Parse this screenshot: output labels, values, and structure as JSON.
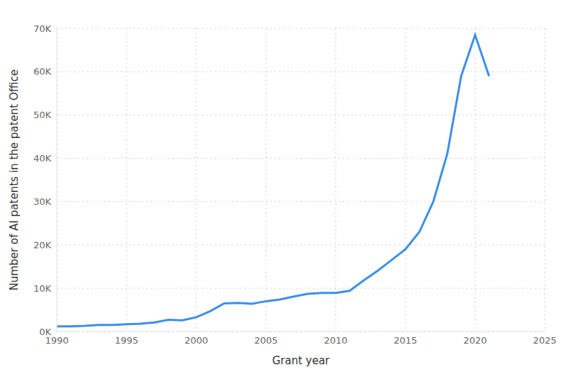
{
  "chart_data": {
    "type": "line",
    "x_label": "Grant year",
    "y_label": "Number of AI patents in the patent Office",
    "x": [
      1990,
      1991,
      1992,
      1993,
      1994,
      1995,
      1996,
      1997,
      1998,
      1999,
      2000,
      2001,
      2002,
      2003,
      2004,
      2005,
      2006,
      2007,
      2008,
      2009,
      2010,
      2011,
      2012,
      2013,
      2014,
      2015,
      2016,
      2017,
      2018,
      2019,
      2020,
      2021
    ],
    "values": [
      1200,
      1200,
      1300,
      1500,
      1500,
      1700,
      1800,
      2100,
      2700,
      2600,
      3300,
      4700,
      6500,
      6600,
      6400,
      7000,
      7400,
      8100,
      8700,
      8900,
      8900,
      9400,
      11800,
      14000,
      16500,
      19000,
      23000,
      30000,
      41000,
      59000,
      68500,
      59000
    ],
    "color": "#3d8fe8",
    "xlim": [
      1990,
      2025
    ],
    "xticks": [
      1990,
      1995,
      2000,
      2005,
      2010,
      2015,
      2020,
      2025
    ],
    "ylim": [
      0,
      70000
    ],
    "yticks": [
      {
        "value": 0,
        "label": "0K"
      },
      {
        "value": 10000,
        "label": "10K"
      },
      {
        "value": 20000,
        "label": "20K"
      },
      {
        "value": 30000,
        "label": "30K"
      },
      {
        "value": 40000,
        "label": "40K"
      },
      {
        "value": 50000,
        "label": "50K"
      },
      {
        "value": 60000,
        "label": "60K"
      },
      {
        "value": 70000,
        "label": "70K"
      }
    ],
    "grid": true
  }
}
